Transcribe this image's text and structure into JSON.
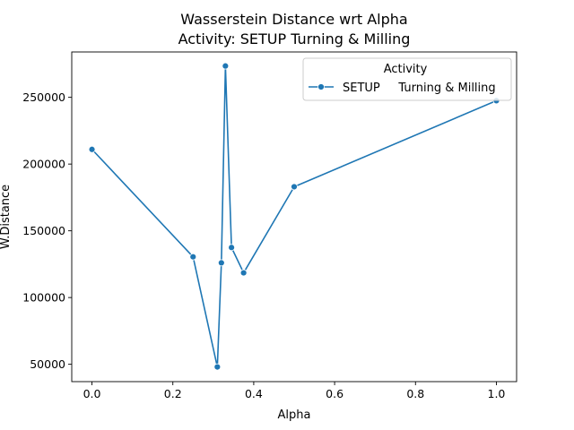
{
  "chart_data": {
    "type": "line",
    "title": "Wasserstein Distance wrt Alpha",
    "subtitle": "Activity: SETUP     Turning & Milling",
    "xlabel": "Alpha",
    "ylabel": "W.Distance",
    "xlim": [
      -0.05,
      1.05
    ],
    "ylim": [
      37000,
      284000
    ],
    "xticks": [
      0.0,
      0.2,
      0.4,
      0.6,
      0.8,
      1.0
    ],
    "xtick_labels": [
      "0.0",
      "0.2",
      "0.4",
      "0.6",
      "0.8",
      "1.0"
    ],
    "yticks": [
      50000,
      100000,
      150000,
      200000,
      250000
    ],
    "ytick_labels": [
      "50000",
      "100000",
      "150000",
      "200000",
      "250000"
    ],
    "grid": false,
    "legend": {
      "title": "Activity",
      "placement": "top-right",
      "entries": [
        "SETUP     Turning & Milling"
      ]
    },
    "series": [
      {
        "name": "SETUP     Turning & Milling",
        "color": "#1f77b4",
        "marker": "circle",
        "x": [
          0.0,
          0.25,
          0.31,
          0.32,
          0.33,
          0.345,
          0.375,
          0.5,
          1.0
        ],
        "y": [
          211000,
          130500,
          48000,
          126000,
          273500,
          137500,
          118500,
          183000,
          247500
        ]
      }
    ]
  }
}
